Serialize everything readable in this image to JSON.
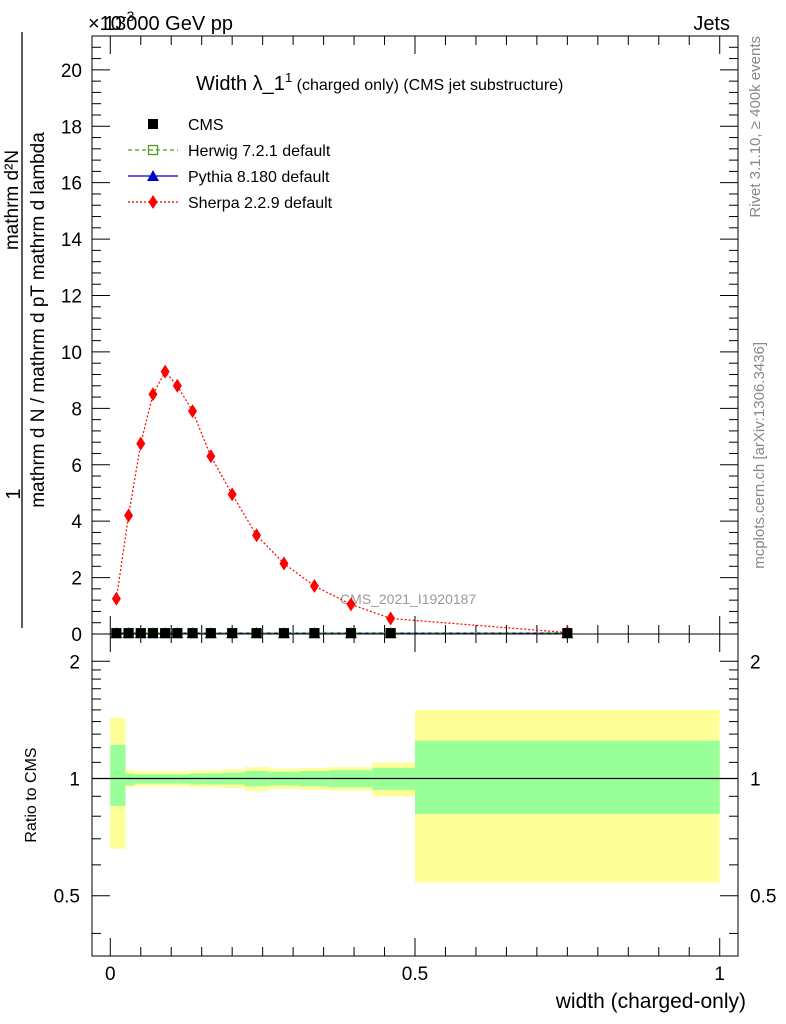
{
  "header": {
    "left": "13000 GeV pp",
    "right": "Jets",
    "exponent_label": "×10",
    "exponent_sup": "-3"
  },
  "side_labels": {
    "rivet": "Rivet 3.1.10, ≥ 400k events",
    "mcplots": "mcplots.cern.ch [arXiv:1306.3436]"
  },
  "watermark": "CMS_2021_I1920187",
  "ylabel": {
    "numerator": "mathrm d²N",
    "fraction_top": "1",
    "fraction_bottom": "mathrm d N / mathrm d pT mathrm d lambda",
    "deriv": "mathrm d pT mathrm d lambda",
    "deriv_top": "mathrm d²N"
  },
  "legend": [
    {
      "label": "CMS",
      "color": "#000000",
      "marker": "square"
    },
    {
      "label": "Herwig 7.2.1 default",
      "color": "#4a9e1a",
      "marker": "open-square",
      "dash": "4,3"
    },
    {
      "label": "Pythia 8.180 default",
      "color": "#0000cc",
      "marker": "triangle"
    },
    {
      "label": "Sherpa 2.2.9 default",
      "color": "#ff0000",
      "marker": "diamond",
      "dash": "2,2"
    }
  ],
  "chart_data": [
    {
      "type": "scatter",
      "title": "Width λ_1¹ (charged only) (CMS jet substructure)",
      "ylabel": "1 / (mathrm d N / mathrm d pT) · mathrm d²N / (mathrm d pT mathrm d lambda)",
      "xlim": [
        -0.03,
        1.03
      ],
      "ylim": [
        0,
        21.2
      ],
      "y_multiplier": "×10^-3",
      "yticks": [
        0,
        2,
        4,
        6,
        8,
        10,
        12,
        14,
        16,
        18,
        20
      ],
      "series": [
        {
          "name": "CMS",
          "x": [
            0.01,
            0.03,
            0.05,
            0.07,
            0.09,
            0.11,
            0.135,
            0.165,
            0.2,
            0.24,
            0.285,
            0.335,
            0.395,
            0.46,
            0.75
          ],
          "y": [
            0.03,
            0.03,
            0.03,
            0.03,
            0.03,
            0.03,
            0.03,
            0.03,
            0.03,
            0.03,
            0.03,
            0.03,
            0.03,
            0.03,
            0.03
          ]
        },
        {
          "name": "Herwig 7.2.1 default",
          "x": [
            0.01,
            0.03,
            0.05,
            0.07,
            0.09,
            0.11,
            0.135,
            0.165,
            0.2,
            0.24,
            0.285,
            0.335,
            0.395,
            0.46,
            0.75
          ],
          "y": [
            0.03,
            0.03,
            0.03,
            0.03,
            0.03,
            0.03,
            0.03,
            0.03,
            0.03,
            0.03,
            0.03,
            0.03,
            0.03,
            0.03,
            0.03
          ]
        },
        {
          "name": "Pythia 8.180 default",
          "x": [
            0.01,
            0.03,
            0.05,
            0.07,
            0.09,
            0.11,
            0.135,
            0.165,
            0.2,
            0.24,
            0.285,
            0.335,
            0.395,
            0.46,
            0.75
          ],
          "y": [
            0.03,
            0.03,
            0.03,
            0.03,
            0.03,
            0.03,
            0.03,
            0.03,
            0.03,
            0.03,
            0.03,
            0.03,
            0.03,
            0.03,
            0.03
          ]
        },
        {
          "name": "Sherpa 2.2.9 default",
          "x": [
            0.01,
            0.03,
            0.05,
            0.07,
            0.09,
            0.11,
            0.135,
            0.165,
            0.2,
            0.24,
            0.285,
            0.335,
            0.395,
            0.46,
            0.75
          ],
          "y": [
            1.25,
            4.2,
            6.75,
            8.5,
            9.3,
            8.8,
            7.9,
            6.3,
            4.95,
            3.5,
            2.5,
            1.7,
            1.05,
            0.55,
            0.05
          ]
        }
      ]
    },
    {
      "type": "area",
      "ylabel": "Ratio to CMS",
      "xlabel": "width (charged-only)",
      "xlim": [
        -0.03,
        1.03
      ],
      "ylim": [
        0.35,
        2.35
      ],
      "yticks": [
        0.5,
        1,
        2
      ],
      "xticks": [
        0,
        0.5,
        1
      ],
      "reference": 1,
      "bins": [
        {
          "x0": 0.0,
          "x1": 0.025,
          "outer": [
            0.66,
            1.43
          ],
          "inner": [
            0.85,
            1.22
          ]
        },
        {
          "x0": 0.025,
          "x1": 0.04,
          "outer": [
            0.95,
            1.05
          ],
          "inner": [
            0.96,
            1.03
          ]
        },
        {
          "x0": 0.04,
          "x1": 0.07,
          "outer": [
            0.955,
            1.045
          ],
          "inner": [
            0.97,
            1.025
          ]
        },
        {
          "x0": 0.07,
          "x1": 0.09,
          "outer": [
            0.955,
            1.045
          ],
          "inner": [
            0.97,
            1.025
          ]
        },
        {
          "x0": 0.09,
          "x1": 0.11,
          "outer": [
            0.955,
            1.045
          ],
          "inner": [
            0.97,
            1.025
          ]
        },
        {
          "x0": 0.11,
          "x1": 0.13,
          "outer": [
            0.955,
            1.045
          ],
          "inner": [
            0.97,
            1.025
          ]
        },
        {
          "x0": 0.13,
          "x1": 0.155,
          "outer": [
            0.95,
            1.05
          ],
          "inner": [
            0.965,
            1.03
          ]
        },
        {
          "x0": 0.155,
          "x1": 0.185,
          "outer": [
            0.95,
            1.05
          ],
          "inner": [
            0.965,
            1.03
          ]
        },
        {
          "x0": 0.185,
          "x1": 0.22,
          "outer": [
            0.945,
            1.055
          ],
          "inner": [
            0.965,
            1.035
          ]
        },
        {
          "x0": 0.22,
          "x1": 0.26,
          "outer": [
            0.93,
            1.07
          ],
          "inner": [
            0.955,
            1.045
          ]
        },
        {
          "x0": 0.26,
          "x1": 0.31,
          "outer": [
            0.94,
            1.06
          ],
          "inner": [
            0.96,
            1.04
          ]
        },
        {
          "x0": 0.31,
          "x1": 0.36,
          "outer": [
            0.935,
            1.065
          ],
          "inner": [
            0.955,
            1.045
          ]
        },
        {
          "x0": 0.36,
          "x1": 0.43,
          "outer": [
            0.93,
            1.07
          ],
          "inner": [
            0.95,
            1.05
          ]
        },
        {
          "x0": 0.43,
          "x1": 0.5,
          "outer": [
            0.9,
            1.1
          ],
          "inner": [
            0.935,
            1.065
          ]
        },
        {
          "x0": 0.5,
          "x1": 1.0,
          "outer": [
            0.54,
            1.5
          ],
          "inner": [
            0.81,
            1.25
          ]
        }
      ],
      "band_colors": {
        "outer": "#ffff99",
        "inner": "#99ff99"
      }
    }
  ]
}
